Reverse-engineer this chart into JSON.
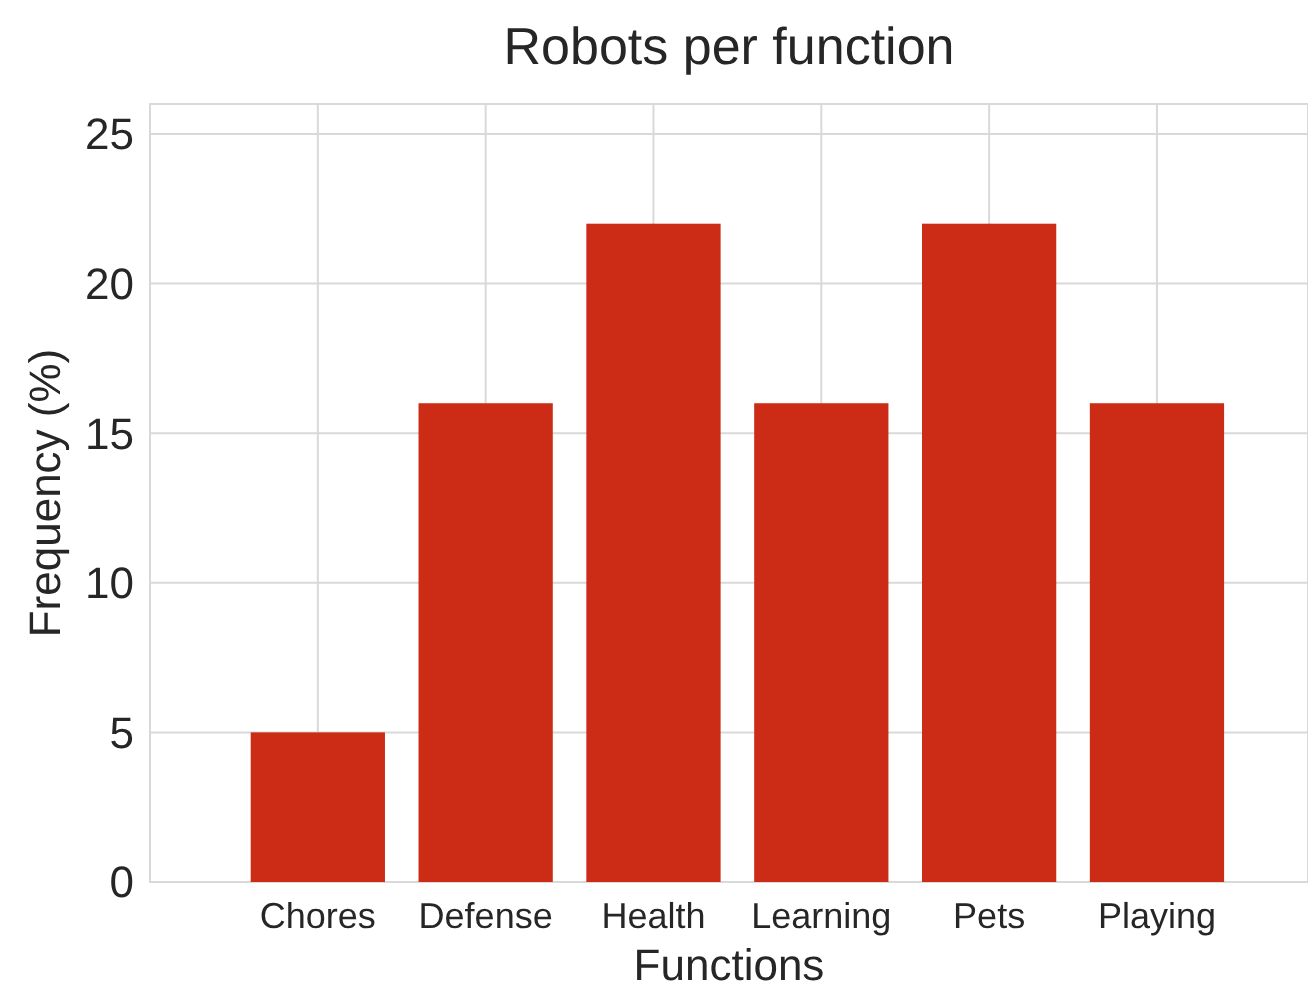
{
  "chart_data": {
    "type": "bar",
    "title": "Robots per function",
    "xlabel": "Functions",
    "ylabel": "Frequency (%)",
    "categories": [
      "Chores",
      "Defense",
      "Health",
      "Learning",
      "Pets",
      "Playing"
    ],
    "values": [
      5,
      16,
      22,
      16,
      22,
      16
    ],
    "color": "#cc2b16",
    "ylim": [
      0,
      26
    ],
    "yticks": [
      0,
      5,
      10,
      15,
      20,
      25
    ],
    "grid": true
  }
}
